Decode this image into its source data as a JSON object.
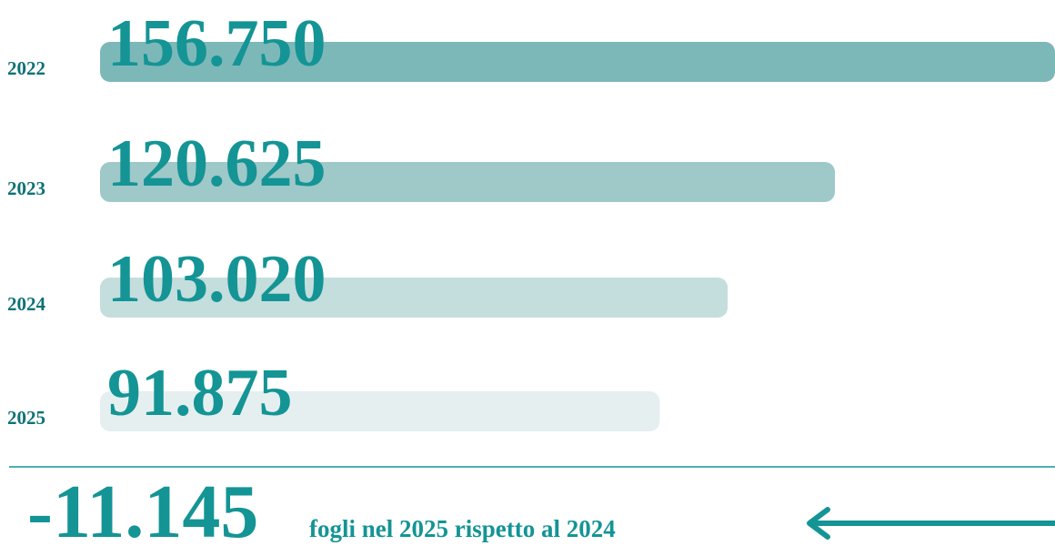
{
  "chart_data": {
    "type": "bar",
    "orientation": "horizontal",
    "categories": [
      "2022",
      "2023",
      "2024",
      "2025"
    ],
    "values": [
      156750,
      120625,
      103020,
      91875
    ],
    "value_labels": [
      "156.750",
      "120.625",
      "103.020",
      "91.875"
    ],
    "colors": [
      "#7db8b9",
      "#9fc8c9",
      "#c4dedd",
      "#e5eff0"
    ],
    "annotation": {
      "value": "-11.145",
      "text": "fogli nel 2025 rispetto al 2024"
    }
  }
}
